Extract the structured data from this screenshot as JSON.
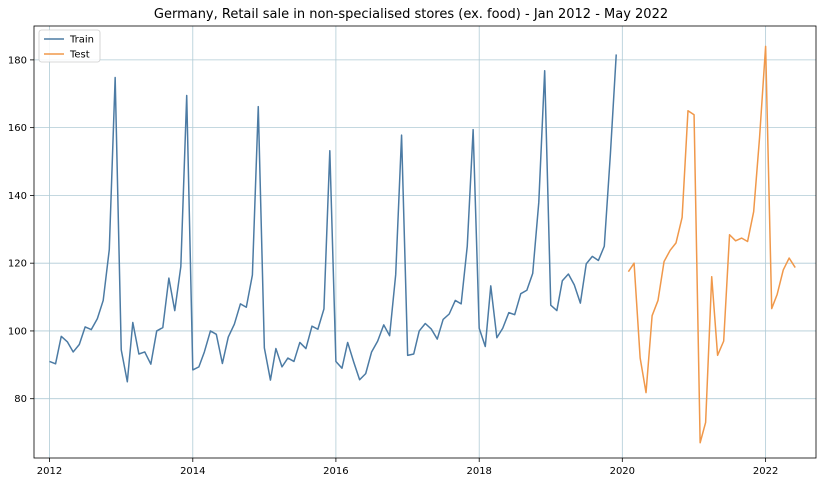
{
  "chart_data": {
    "type": "line",
    "title": "Germany, Retail sale in non-specialised stores (ex. food) - Jan 2012 - May 2022",
    "xlabel": "",
    "ylabel": "",
    "xlim": [
      "2011-10-14",
      "2022-09-15"
    ],
    "ylim": [
      62.5,
      190
    ],
    "x_ticks": [
      "2012",
      "2014",
      "2016",
      "2018",
      "2020",
      "2022"
    ],
    "y_ticks": [
      80,
      100,
      120,
      140,
      160,
      180
    ],
    "grid": true,
    "legend": "top-left",
    "series": [
      {
        "name": "Train",
        "color": "#4c7ba4",
        "start": "2012-01",
        "values": [
          91.0,
          90.3,
          98.4,
          96.8,
          93.8,
          96.0,
          101.2,
          100.4,
          103.6,
          109.0,
          124.0,
          174.8,
          94.4,
          85.0,
          102.5,
          93.2,
          93.8,
          90.2,
          100.0,
          101.0,
          115.6,
          106.0,
          119.0,
          169.5,
          88.5,
          89.4,
          93.8,
          100.0,
          99.0,
          90.4,
          98.2,
          102.0,
          108.0,
          107.0,
          116.5,
          166.2,
          95.0,
          85.5,
          94.8,
          89.4,
          92.0,
          91.0,
          96.6,
          94.8,
          101.4,
          100.5,
          106.5,
          153.2,
          91.0,
          89.0,
          96.6,
          90.8,
          85.6,
          87.4,
          93.8,
          97.0,
          101.8,
          98.6,
          116.6,
          157.8,
          92.8,
          93.2,
          100.0,
          102.2,
          100.6,
          97.6,
          103.4,
          105.0,
          109.0,
          108.0,
          125.0,
          159.4,
          100.8,
          95.4,
          113.3,
          98.0,
          100.8,
          105.4,
          104.8,
          111.0,
          112.0,
          117.0,
          138.0,
          176.8,
          107.6,
          106.0,
          114.8,
          116.8,
          113.6,
          108.2,
          119.8,
          122.0,
          120.8,
          125.0,
          152.0,
          181.6
        ]
      },
      {
        "name": "Test",
        "color": "#f0984a",
        "start": "2020-02",
        "values": [
          117.5,
          120.0,
          92.0,
          81.8,
          104.5,
          109.0,
          120.5,
          123.8,
          126.0,
          133.5,
          165.0,
          163.8,
          67.0,
          73.0,
          116.0,
          92.8,
          97.0,
          128.4,
          126.6,
          127.4,
          126.4,
          135.2,
          157.0,
          184.0,
          106.6,
          110.8,
          118.0,
          121.5,
          118.7
        ]
      }
    ]
  }
}
